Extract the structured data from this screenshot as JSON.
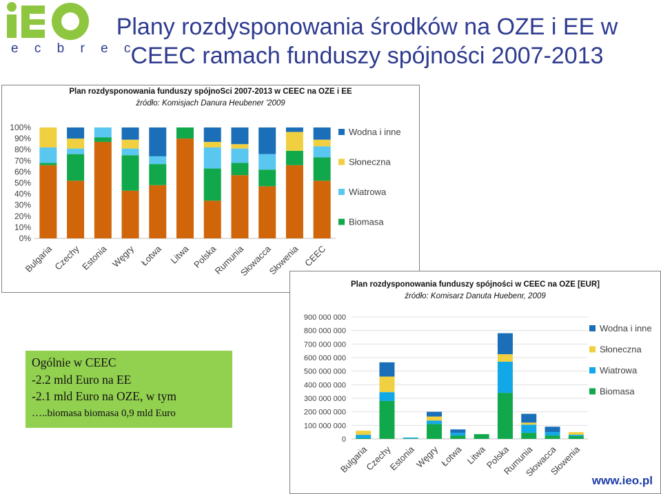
{
  "page": {
    "title_line1": "Plany rozdysponowania środków na OZE i EE w",
    "title_line2": "CEEC ramach funduszy spójności 2007-2013",
    "logo_text": "iEO",
    "logo_subtext": "e c b r e c",
    "website": "www.ieo.pl",
    "summary": {
      "line1": "Ogólnie w CEEC",
      "line2": "-2.2 mld Euro  na EE",
      "line3": "-2.1 mld Euro na OZE, w tym",
      "line4": "…..biomasa biomasa 0,9 mld Euro"
    }
  },
  "chart_data": [
    {
      "type": "bar",
      "stacked": "percent",
      "title": "Plan rozdysponowania funduszy spójnoSci 2007-2013 w CEEC na OZE i EE",
      "subtitle": "źródło: Komisjach Danura Heubener '2009",
      "categories": [
        "Bulgaria",
        "Czechy",
        "Estonia",
        "Węgry",
        "Łotwa",
        "Litwa",
        "Polska",
        "Rumunia",
        "Słowacca",
        "Słowenia",
        "CEEC"
      ],
      "y_ticks": [
        "0%",
        "10%",
        "20%",
        "30%",
        "40%",
        "50%",
        "60%",
        "70%",
        "80%",
        "90%",
        "100%"
      ],
      "ylim": [
        0,
        100
      ],
      "legend_position": "right",
      "series": [
        {
          "name": "Biomasa",
          "color": "#d0650a",
          "values": [
            66,
            52,
            87,
            43,
            48,
            90,
            34,
            57,
            47,
            66,
            52
          ]
        },
        {
          "name": "Biomasa",
          "color": "#10a84a",
          "values": [
            2,
            24,
            4,
            32,
            19,
            10,
            29,
            11,
            15,
            13,
            21
          ]
        },
        {
          "name": "Wiatrowa",
          "color": "#5ac7f0",
          "values": [
            14,
            5,
            9,
            6,
            7,
            0,
            19,
            13,
            14,
            0,
            10
          ]
        },
        {
          "name": "Słoneczna",
          "color": "#f0d040",
          "values": [
            18,
            9,
            0,
            8,
            0,
            0,
            5,
            4,
            0,
            17,
            6
          ]
        },
        {
          "name": "Wodna i inne",
          "color": "#1a6fb8",
          "values": [
            0,
            10,
            0,
            11,
            26,
            0,
            13,
            15,
            24,
            4,
            11
          ]
        }
      ],
      "legend": [
        {
          "name": "Wodna i inne",
          "color": "#1a6fb8"
        },
        {
          "name": "Słoneczna",
          "color": "#f0d040"
        },
        {
          "name": "Wiatrowa",
          "color": "#5ac7f0"
        },
        {
          "name": "Biomasa",
          "color": "#10a84a"
        }
      ]
    },
    {
      "type": "bar",
      "stacked": "absolute",
      "title": "Plan rozdysponowania funduszy spójności  w CEEC na OZE [EUR]",
      "subtitle": "źródło: Komisarz Danuta Huebenr, 2009",
      "categories": [
        "Bulgaria",
        "Czechy",
        "Estonia",
        "Węgry",
        "Łotwa",
        "Litwa",
        "Polska",
        "Rumunia",
        "Słowacca",
        "Słowenia"
      ],
      "y_ticks": [
        "0",
        "100 000 000",
        "200 000 000",
        "300 000 000",
        "400 000 000",
        "500 000 000",
        "600 000 000",
        "700 000 000",
        "800 000 000",
        "900 000 000"
      ],
      "ylim": [
        0,
        900000000
      ],
      "legend_position": "right",
      "series": [
        {
          "name": "Biomasa",
          "color": "#10a84a",
          "values": [
            5000000,
            280000000,
            3000000,
            110000000,
            25000000,
            35000000,
            340000000,
            45000000,
            25000000,
            20000000
          ]
        },
        {
          "name": "Wiatrowa",
          "color": "#12a8e8",
          "values": [
            25000000,
            65000000,
            7000000,
            25000000,
            20000000,
            0,
            230000000,
            60000000,
            25000000,
            10000000
          ]
        },
        {
          "name": "Słoneczna",
          "color": "#f0d040",
          "values": [
            30000000,
            115000000,
            0,
            30000000,
            0,
            0,
            55000000,
            15000000,
            0,
            20000000
          ]
        },
        {
          "name": "Wodna i inne",
          "color": "#1a6fb8",
          "values": [
            0,
            105000000,
            0,
            35000000,
            25000000,
            0,
            155000000,
            65000000,
            40000000,
            0
          ]
        }
      ],
      "legend": [
        {
          "name": "Wodna i inne",
          "color": "#1a6fb8"
        },
        {
          "name": "Słoneczna",
          "color": "#f0d040"
        },
        {
          "name": "Wiatrowa",
          "color": "#12a8e8"
        },
        {
          "name": "Biomasa",
          "color": "#10a84a"
        }
      ]
    }
  ]
}
